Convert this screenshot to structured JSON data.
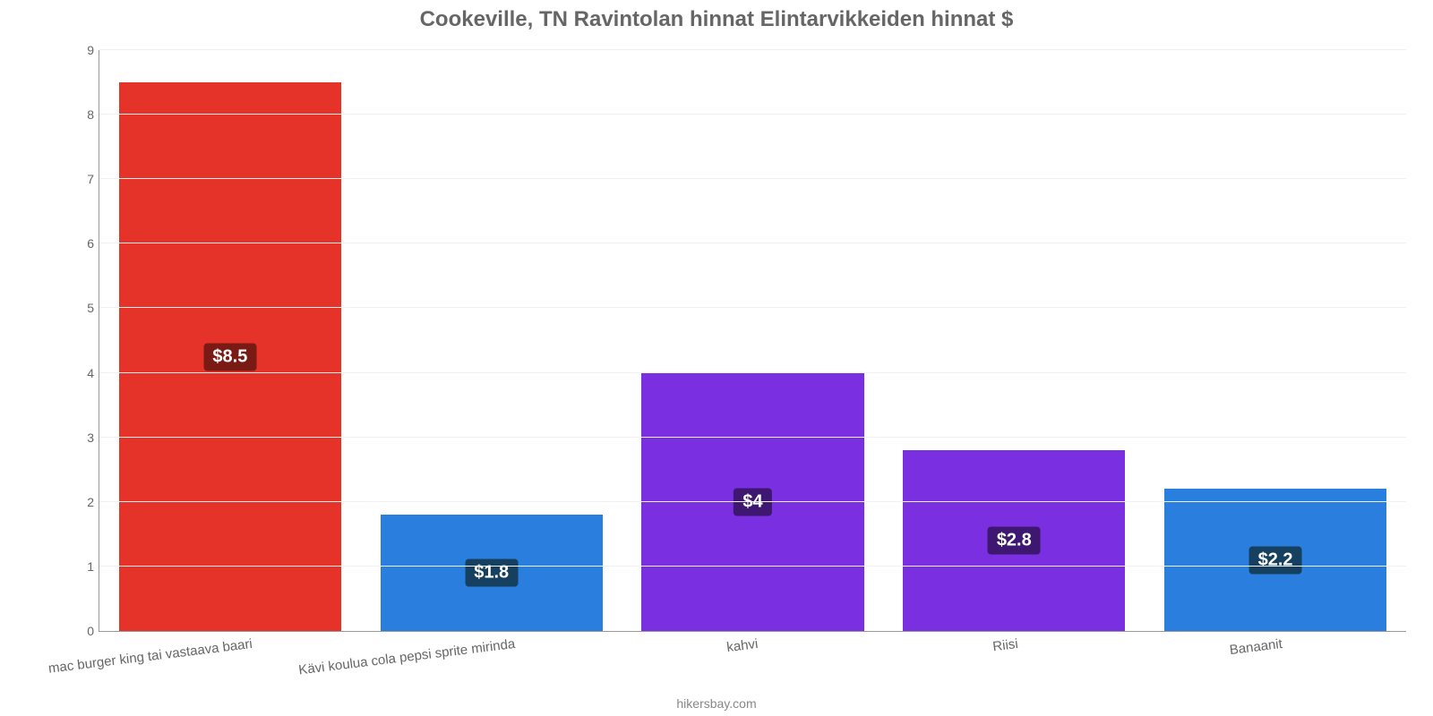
{
  "chart": {
    "type": "bar",
    "title": "Cookeville, TN Ravintolan hinnat Elintarvikkeiden hinnat $",
    "title_fontsize": 24,
    "title_color": "#666666",
    "credit": "hikersbay.com",
    "background_color": "#ffffff",
    "grid_color": "#f0f0f0",
    "axis_color": "#999999",
    "tick_color": "#666666",
    "tick_fontsize": 14,
    "xlabel_fontsize": 15,
    "xlabel_rotation_deg": -7,
    "ylim": [
      0,
      9
    ],
    "ytick_step": 1,
    "bar_width_ratio": 0.85,
    "value_badge_fontsize": 20,
    "categories": [
      "mac burger king tai vastaava baari",
      "Kävi koulua cola pepsi sprite mirinda",
      "kahvi",
      "Riisi",
      "Banaanit"
    ],
    "values": [
      8.5,
      1.8,
      4,
      2.8,
      2.2
    ],
    "value_labels": [
      "$8.5",
      "$1.8",
      "$4",
      "$2.8",
      "$2.2"
    ],
    "bar_colors": [
      "#e6332a",
      "#2a7fde",
      "#7a2fe0",
      "#7a2fe0",
      "#2a7fde"
    ],
    "badge_colors": [
      "#7a1a15",
      "#15405f",
      "#3d1770",
      "#3d1770",
      "#15405f"
    ]
  }
}
